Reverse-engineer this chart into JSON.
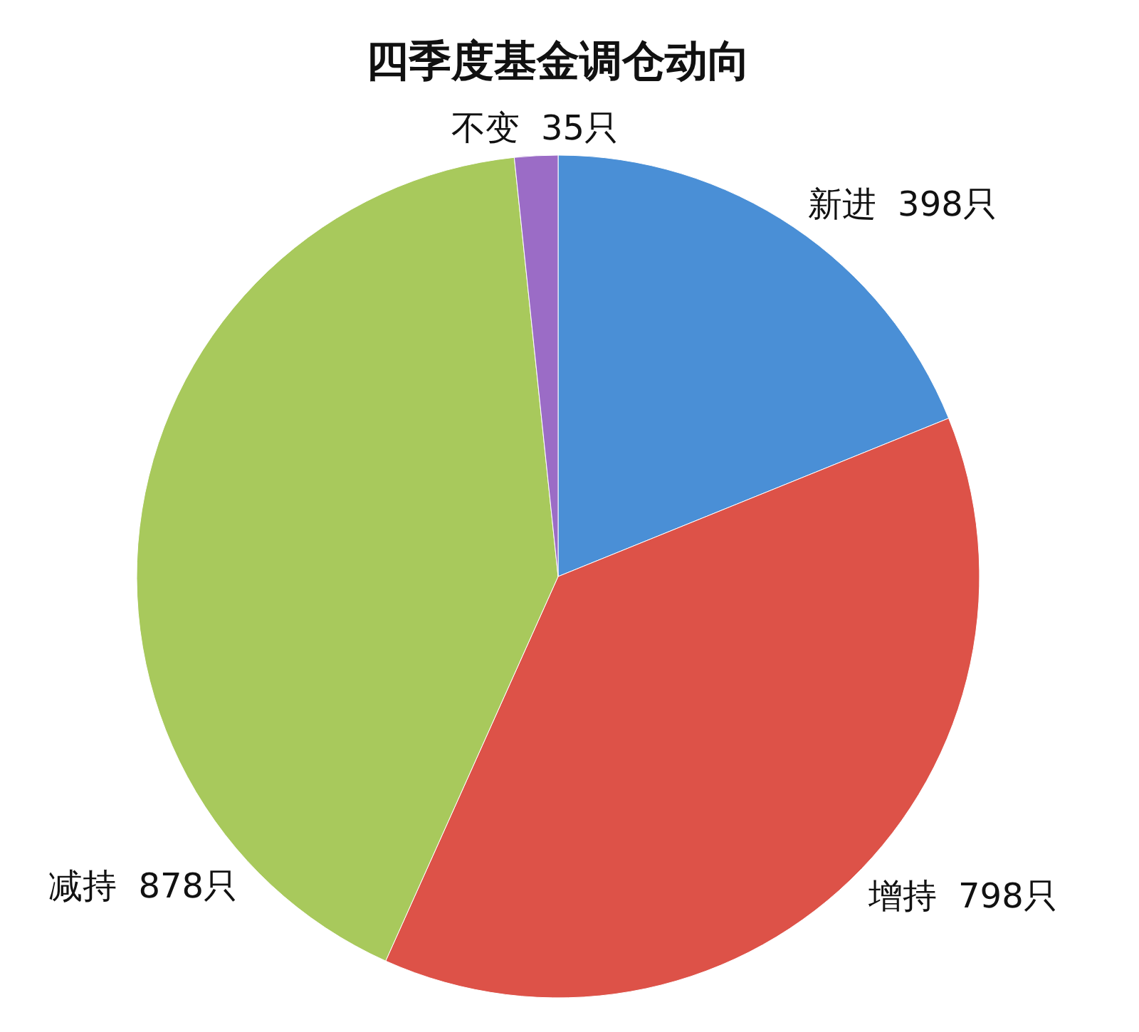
{
  "chart_data": {
    "type": "pie",
    "title": "四季度基金调仓动向",
    "categories": [
      "新进",
      "增持",
      "减持",
      "不变"
    ],
    "values": [
      398,
      798,
      878,
      35
    ],
    "value_labels": [
      "398只",
      "798只",
      "878只",
      "35只"
    ],
    "colors": [
      "#4a8fd6",
      "#dd5248",
      "#a8c95c",
      "#9b6cc6"
    ],
    "legend": false
  }
}
